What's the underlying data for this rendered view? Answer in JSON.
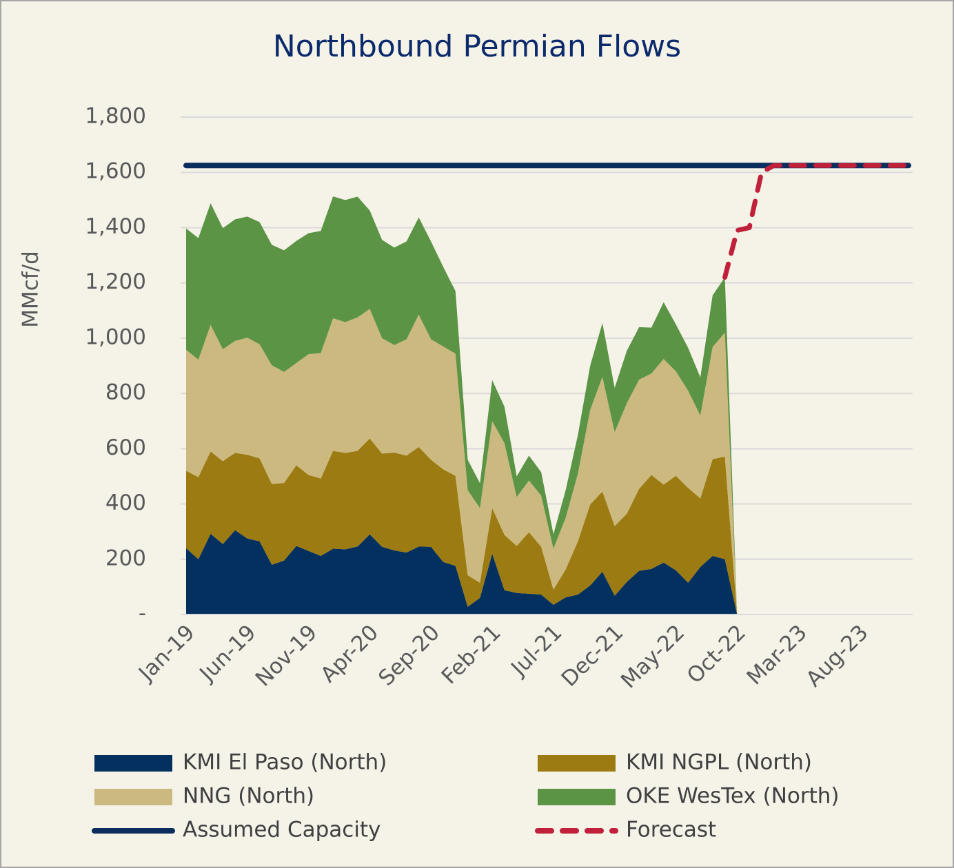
{
  "chart_data": {
    "type": "area",
    "stacked": true,
    "title": "Northbound Permian Flows",
    "y_label": "MMcf/d",
    "categories": [
      "Jan-19",
      null,
      null,
      null,
      null,
      "Jun-19",
      null,
      null,
      null,
      null,
      "Nov-19",
      null,
      null,
      null,
      null,
      "Apr-20",
      null,
      null,
      null,
      null,
      "Sep-20",
      null,
      null,
      null,
      null,
      "Feb-21",
      null,
      null,
      null,
      null,
      "Jul-21",
      null,
      null,
      null,
      null,
      "Dec-21",
      null,
      null,
      null,
      null,
      "May-22",
      null,
      null,
      null,
      null,
      "Oct-22",
      null,
      null,
      null,
      null,
      "Mar-23",
      null,
      null,
      null,
      null,
      "Aug-23",
      null,
      null,
      null,
      null
    ],
    "ylim": [
      0,
      1800
    ],
    "yticks": [
      {
        "value": 0,
        "label": "-"
      },
      200,
      400,
      600,
      800,
      {
        "value": 1000,
        "label": "1,000"
      },
      {
        "value": 1200,
        "label": "1,200"
      },
      {
        "value": 1400,
        "label": "1,400"
      },
      {
        "value": 1600,
        "label": "1,600"
      },
      {
        "value": 1800,
        "label": "1,800"
      }
    ],
    "grid": true,
    "series": [
      {
        "name": "KMI El Paso (North)",
        "kind": "area",
        "color": "#03305f",
        "values": [
          240,
          200,
          292,
          255,
          305,
          275,
          265,
          180,
          195,
          248,
          230,
          212,
          238,
          236,
          246,
          290,
          245,
          232,
          224,
          246,
          245,
          190,
          176,
          28,
          60,
          220,
          88,
          78,
          75,
          72,
          35,
          62,
          72,
          105,
          155,
          68,
          118,
          158,
          165,
          188,
          160,
          115,
          172,
          212,
          200,
          0,
          null,
          null,
          null,
          null,
          null,
          null,
          null,
          null,
          null,
          null,
          null,
          null,
          null,
          null
        ]
      },
      {
        "name": "KMI NGPL (North)",
        "kind": "area",
        "color": "#9c7b12",
        "values": [
          280,
          297,
          298,
          300,
          280,
          303,
          300,
          292,
          281,
          292,
          275,
          280,
          354,
          349,
          346,
          347,
          337,
          354,
          351,
          360,
          315,
          335,
          326,
          114,
          55,
          165,
          200,
          170,
          223,
          173,
          55,
          101,
          193,
          293,
          290,
          252,
          247,
          297,
          340,
          282,
          342,
          343,
          248,
          350,
          372,
          0,
          null,
          null,
          null,
          null,
          null,
          null,
          null,
          null,
          null,
          null,
          null,
          null,
          null,
          null
        ]
      },
      {
        "name": "NNG (North)",
        "kind": "area",
        "color": "#cbb97f",
        "values": [
          438,
          425,
          458,
          405,
          405,
          424,
          413,
          430,
          402,
          370,
          437,
          454,
          480,
          473,
          483,
          469,
          418,
          389,
          421,
          479,
          436,
          445,
          442,
          308,
          270,
          315,
          332,
          177,
          187,
          185,
          148,
          187,
          245,
          342,
          415,
          340,
          400,
          395,
          367,
          455,
          378,
          352,
          300,
          406,
          448,
          0,
          null,
          null,
          null,
          null,
          null,
          null,
          null,
          null,
          null,
          null,
          null,
          null,
          null,
          null
        ]
      },
      {
        "name": "OKE WesTex (North)",
        "kind": "area",
        "color": "#5a9444",
        "values": [
          439,
          440,
          440,
          438,
          440,
          438,
          442,
          436,
          440,
          442,
          438,
          442,
          441,
          442,
          437,
          356,
          356,
          353,
          354,
          352,
          354,
          288,
          226,
          110,
          90,
          148,
          132,
          75,
          90,
          85,
          52,
          100,
          140,
          160,
          195,
          160,
          190,
          190,
          166,
          205,
          170,
          155,
          138,
          187,
          200,
          0,
          null,
          null,
          null,
          null,
          null,
          null,
          null,
          null,
          null,
          null,
          null,
          null,
          null,
          null
        ]
      },
      {
        "name": "Assumed Capacity",
        "kind": "line",
        "dashed": false,
        "color": "#0b2d5e",
        "values": [
          1625,
          1625,
          1625,
          1625,
          1625,
          1625,
          1625,
          1625,
          1625,
          1625,
          1625,
          1625,
          1625,
          1625,
          1625,
          1625,
          1625,
          1625,
          1625,
          1625,
          1625,
          1625,
          1625,
          1625,
          1625,
          1625,
          1625,
          1625,
          1625,
          1625,
          1625,
          1625,
          1625,
          1625,
          1625,
          1625,
          1625,
          1625,
          1625,
          1625,
          1625,
          1625,
          1625,
          1625,
          1625,
          1625,
          1625,
          1625,
          1625,
          1625,
          1625,
          1625,
          1625,
          1625,
          1625,
          1625,
          1625,
          1625,
          1625,
          1625
        ]
      },
      {
        "name": "Forecast",
        "kind": "line",
        "dashed": true,
        "color": "#c0203a",
        "values": [
          null,
          null,
          null,
          null,
          null,
          null,
          null,
          null,
          null,
          null,
          null,
          null,
          null,
          null,
          null,
          null,
          null,
          null,
          null,
          null,
          null,
          null,
          null,
          null,
          null,
          null,
          null,
          null,
          null,
          null,
          null,
          null,
          null,
          null,
          null,
          null,
          null,
          null,
          null,
          null,
          null,
          null,
          null,
          null,
          1220,
          1390,
          1400,
          1600,
          1625,
          1625,
          1625,
          1625,
          1625,
          1625,
          1625,
          1625,
          1625,
          1625,
          1625,
          1625
        ]
      }
    ]
  }
}
